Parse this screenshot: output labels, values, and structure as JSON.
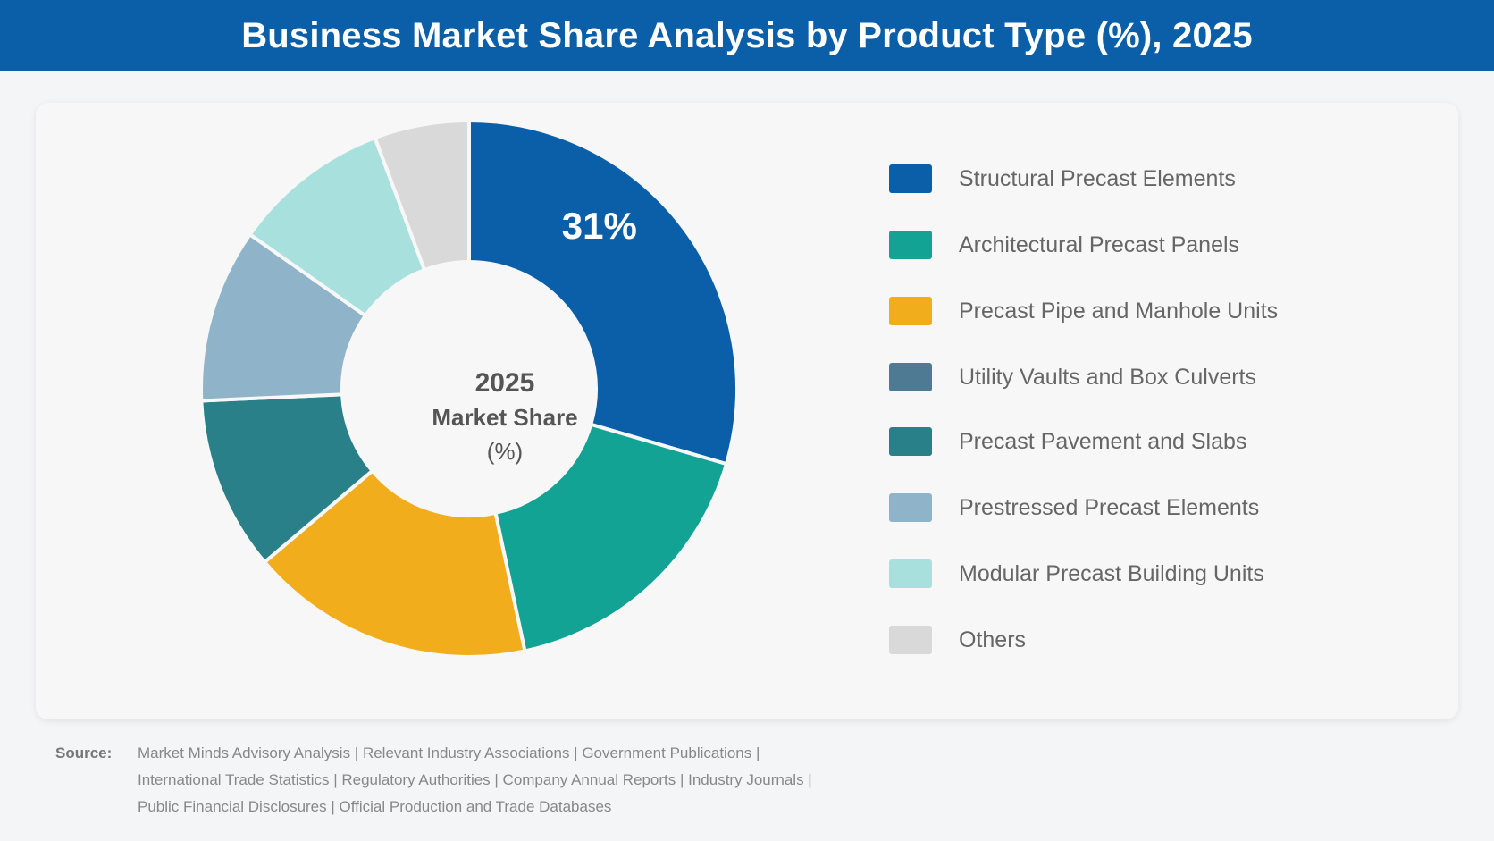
{
  "title": "Business Market Share Analysis by Product Type (%), 2025",
  "center_label": {
    "line1": "2025",
    "line2": "Market Share",
    "line3": "(%)"
  },
  "source": {
    "label": "Source:",
    "lines": [
      "Market Minds Advisory Analysis  |  Relevant Industry Associations  |  Government Publications  |",
      "International Trade Statistics  |  Regulatory Authorities  |  Company Annual Reports  |  Industry Journals  |",
      "Public Financial Disclosures  |  Official Production and Trade Databases"
    ]
  },
  "colors": {
    "header_bg": "#0b5fa8",
    "structural": "#0b5fa8",
    "architectural": "#12a394",
    "pipe": "#f2ad1c",
    "utility": "#4e7a93",
    "pavement": "#2a8088",
    "prestressed": "#8fb3c8",
    "modular": "#a8e0dd",
    "others": "#d9d9d9"
  },
  "chart_data": {
    "type": "pie",
    "donut": true,
    "categories": [
      "Structural Precast Elements",
      "Architectural Precast Panels",
      "Precast Pipe and Manhole Units",
      "Utility Vaults and Box Culverts",
      "Precast Pavement and Slabs",
      "Prestressed Precast Elements",
      "Modular Precast Building Units",
      "Others"
    ],
    "values": [
      31,
      18,
      18,
      0,
      11,
      11,
      10,
      6
    ],
    "data_labels": [
      "31%",
      "",
      "",
      "",
      "",
      "",
      "",
      ""
    ],
    "colors": [
      "#0b5fa8",
      "#12a394",
      "#f2ad1c",
      "#4e7a93",
      "#2a8088",
      "#8fb3c8",
      "#a8e0dd",
      "#d9d9d9"
    ],
    "legend_position": "right"
  }
}
